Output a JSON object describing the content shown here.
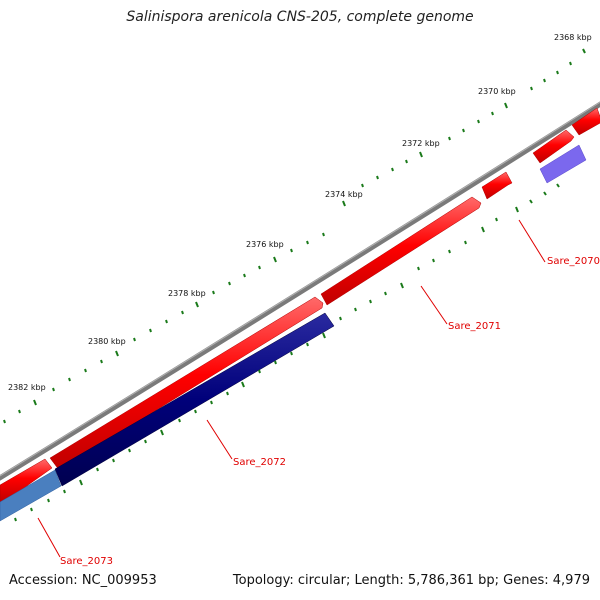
{
  "title": "Salinispora arenicola CNS-205, complete genome",
  "footer": {
    "accession": "Accession: NC_009953",
    "summary": "Topology: circular; Length: 5,786,361 bp; Genes: 4,979"
  },
  "colors": {
    "backbone": "#808080",
    "forward_gene": "#ff0000",
    "reverse_gene": "#00007a",
    "reverse_gene_light": "#7b68ee",
    "reverse_gene_steel": "#4a7fbf",
    "tick": "#1a7a1a",
    "label_text": "#e00000"
  },
  "kbp_labels": [
    "2368 kbp",
    "2370 kbp",
    "2372 kbp",
    "2374 kbp",
    "2376 kbp",
    "2378 kbp",
    "2380 kbp",
    "2382 kbp"
  ],
  "genes": [
    {
      "label": "Sare_2070"
    },
    {
      "label": "Sare_2071"
    },
    {
      "label": "Sare_2072"
    },
    {
      "label": "Sare_2073"
    }
  ]
}
